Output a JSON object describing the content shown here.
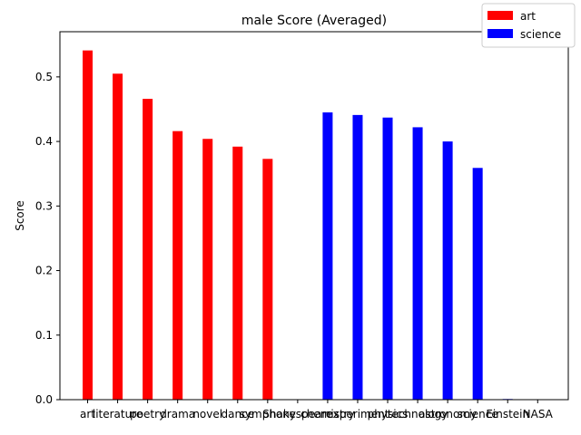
{
  "chart_data": {
    "type": "bar",
    "title": "male Score (Averaged)",
    "xlabel": "",
    "ylabel": "Score",
    "ylim": [
      0,
      0.57
    ],
    "yticks": [
      0.0,
      0.1,
      0.2,
      0.3,
      0.4,
      0.5
    ],
    "ytick_labels": [
      "0.0",
      "0.1",
      "0.2",
      "0.3",
      "0.4",
      "0.5"
    ],
    "grid": false,
    "legend_position": "top-right",
    "categories": [
      "art",
      "literature",
      "poetry",
      "drama",
      "novel",
      "dance",
      "symphony",
      "Shakespeare",
      "chemistry",
      "experiment",
      "physics",
      "technology",
      "astronomy",
      "science",
      "Einstein",
      "NASA"
    ],
    "series": [
      {
        "name": "art",
        "color": "#ff0000",
        "values": [
          0.541,
          0.505,
          0.466,
          0.416,
          0.404,
          0.392,
          0.373,
          0.0,
          null,
          null,
          null,
          null,
          null,
          null,
          null,
          null
        ]
      },
      {
        "name": "science",
        "color": "#0000ff",
        "values": [
          null,
          null,
          null,
          null,
          null,
          null,
          null,
          null,
          0.445,
          0.441,
          0.437,
          0.422,
          0.4,
          0.359,
          0.001,
          0.0
        ]
      }
    ]
  }
}
